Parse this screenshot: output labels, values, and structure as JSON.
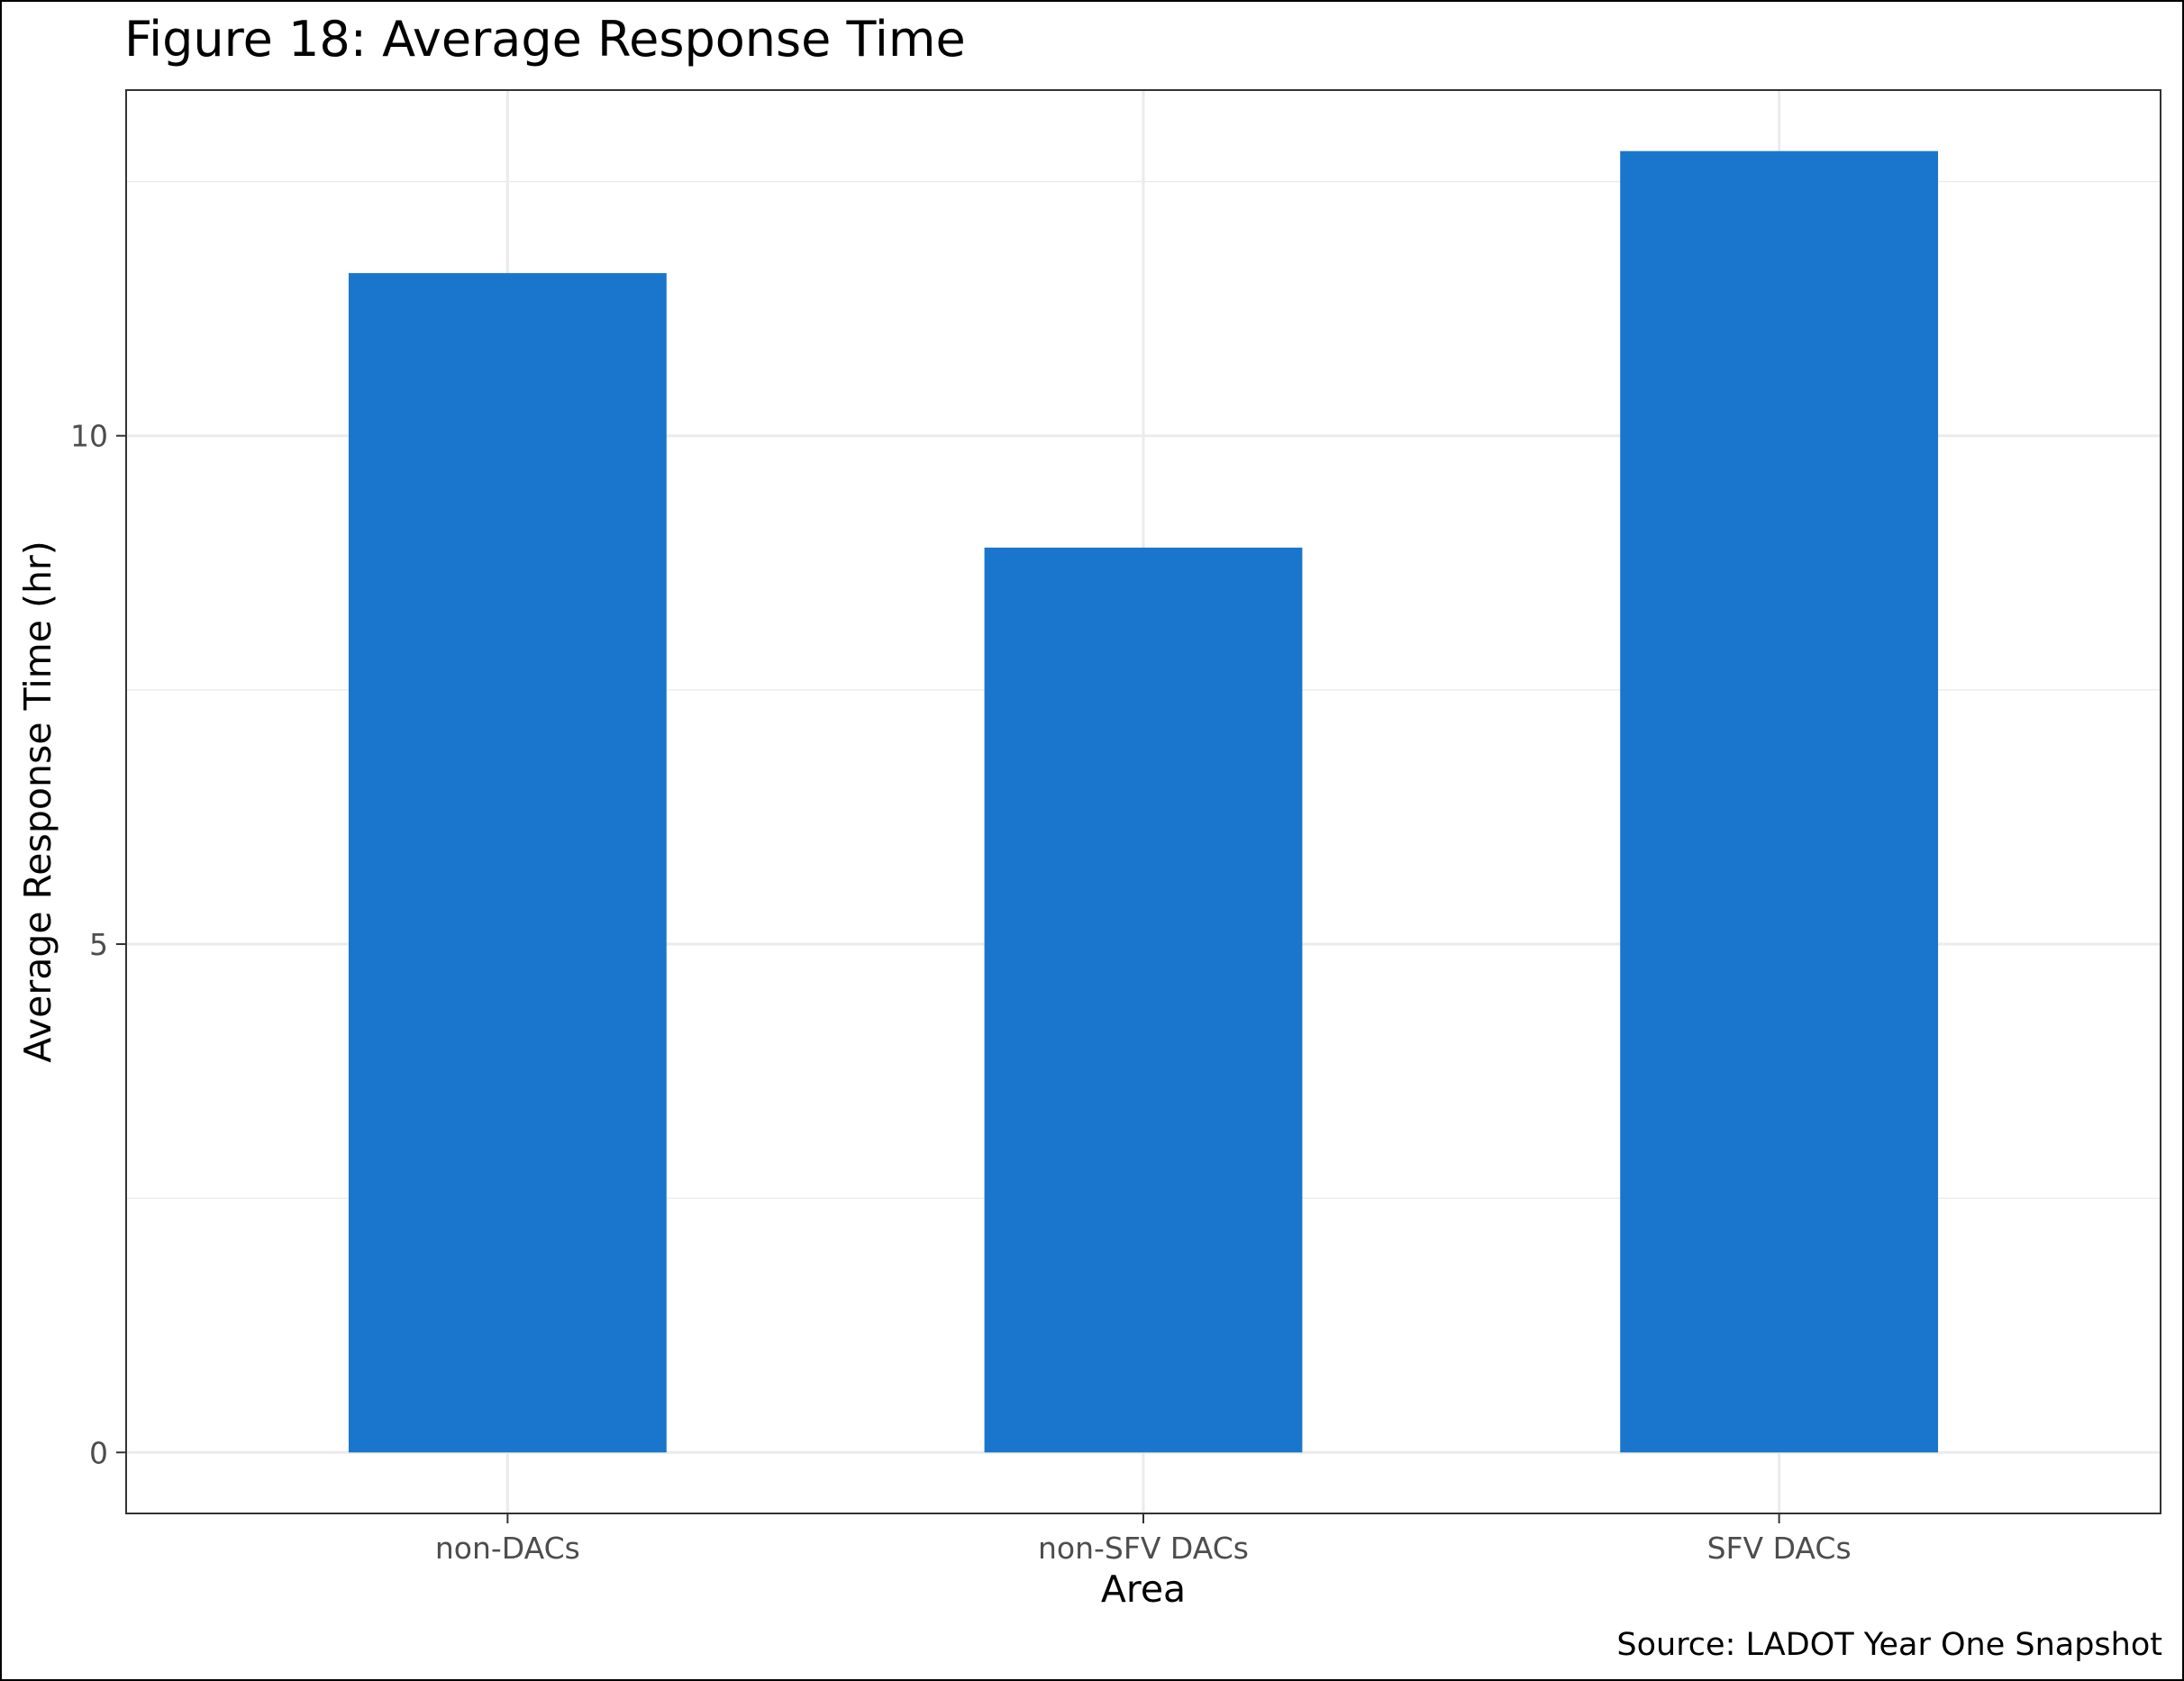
{
  "chart_data": {
    "type": "bar",
    "title": "Figure 18: Average Response Time",
    "xlabel": "Area",
    "ylabel": "Average Response Time (hr)",
    "caption": "Source: LADOT Year One Snapshot",
    "categories": [
      "non-DACs",
      "non-SFV DACs",
      "SFV DACs"
    ],
    "values": [
      11.6,
      8.9,
      12.8
    ],
    "ylim": [
      -0.6,
      13.4
    ],
    "yticks": [
      0,
      5,
      10
    ],
    "ytick_labels": [
      "0",
      "5",
      "10"
    ],
    "grid": true,
    "legend": "none",
    "colors": {
      "bar": "#1a75cc",
      "grid": "#ebebeb",
      "panel_border": "#333333",
      "tick_label": "#4d4d4d",
      "text": "#000000"
    }
  }
}
